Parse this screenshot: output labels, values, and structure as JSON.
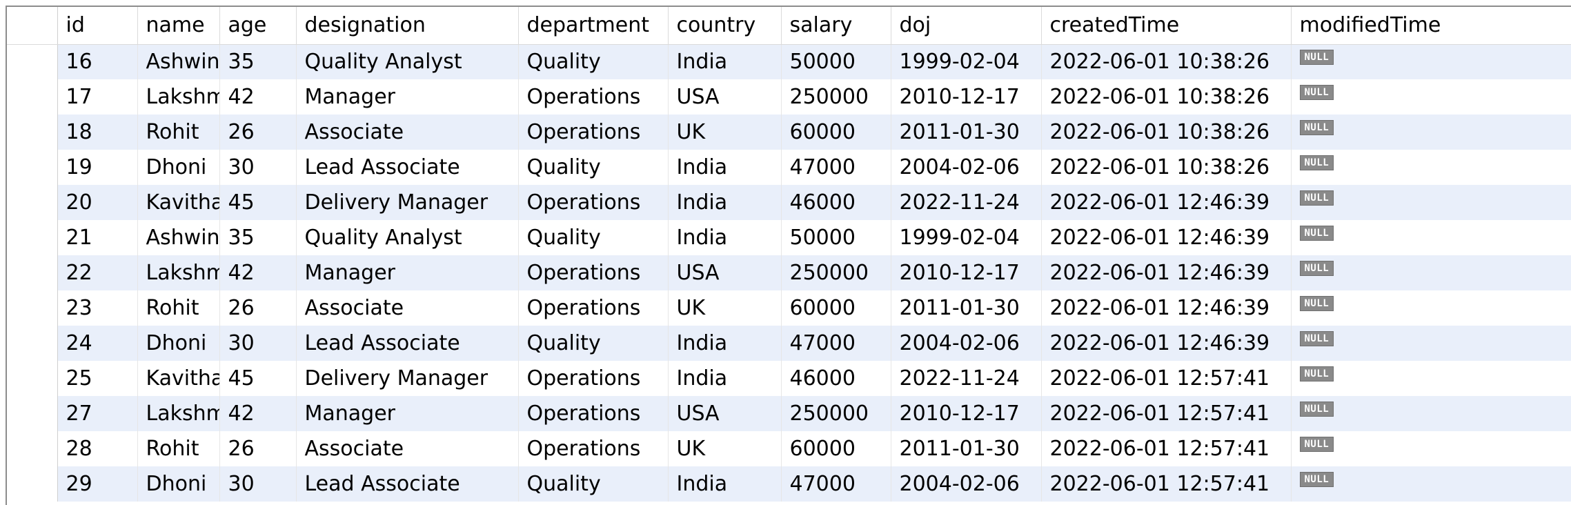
{
  "grid": {
    "columns": [
      "id",
      "name",
      "age",
      "designation",
      "department",
      "country",
      "salary",
      "doj",
      "createdTime",
      "modifiedTime"
    ],
    "rows": [
      [
        "16",
        "Ashwini",
        "35",
        "Quality Analyst",
        "Quality",
        "India",
        "50000",
        "1999-02-04",
        "2022-06-01 10:38:26",
        "NULL"
      ],
      [
        "17",
        "Lakshmi",
        "42",
        "Manager",
        "Operations",
        "USA",
        "250000",
        "2010-12-17",
        "2022-06-01 10:38:26",
        "NULL"
      ],
      [
        "18",
        "Rohit",
        "26",
        "Associate",
        "Operations",
        "UK",
        "60000",
        "2011-01-30",
        "2022-06-01 10:38:26",
        "NULL"
      ],
      [
        "19",
        "Dhoni",
        "30",
        "Lead Associate",
        "Quality",
        "India",
        "47000",
        "2004-02-06",
        "2022-06-01 10:38:26",
        "NULL"
      ],
      [
        "20",
        "Kavitha",
        "45",
        "Delivery Manager",
        "Operations",
        "India",
        "46000",
        "2022-11-24",
        "2022-06-01 12:46:39",
        "NULL"
      ],
      [
        "21",
        "Ashwini",
        "35",
        "Quality Analyst",
        "Quality",
        "India",
        "50000",
        "1999-02-04",
        "2022-06-01 12:46:39",
        "NULL"
      ],
      [
        "22",
        "Lakshmi",
        "42",
        "Manager",
        "Operations",
        "USA",
        "250000",
        "2010-12-17",
        "2022-06-01 12:46:39",
        "NULL"
      ],
      [
        "23",
        "Rohit",
        "26",
        "Associate",
        "Operations",
        "UK",
        "60000",
        "2011-01-30",
        "2022-06-01 12:46:39",
        "NULL"
      ],
      [
        "24",
        "Dhoni",
        "30",
        "Lead Associate",
        "Quality",
        "India",
        "47000",
        "2004-02-06",
        "2022-06-01 12:46:39",
        "NULL"
      ],
      [
        "25",
        "Kavitha",
        "45",
        "Delivery Manager",
        "Operations",
        "India",
        "46000",
        "2022-11-24",
        "2022-06-01 12:57:41",
        "NULL"
      ],
      [
        "27",
        "Lakshmi",
        "42",
        "Manager",
        "Operations",
        "USA",
        "250000",
        "2010-12-17",
        "2022-06-01 12:57:41",
        "NULL"
      ],
      [
        "28",
        "Rohit",
        "26",
        "Associate",
        "Operations",
        "UK",
        "60000",
        "2011-01-30",
        "2022-06-01 12:57:41",
        "NULL"
      ],
      [
        "29",
        "Dhoni",
        "30",
        "Lead Associate",
        "Quality",
        "India",
        "47000",
        "2004-02-06",
        "2022-06-01 12:57:41",
        "NULL"
      ]
    ]
  },
  "colors": {
    "row_alt": "#e9effa",
    "row_base": "#ffffff",
    "null_badge": "#8a8a8a"
  }
}
